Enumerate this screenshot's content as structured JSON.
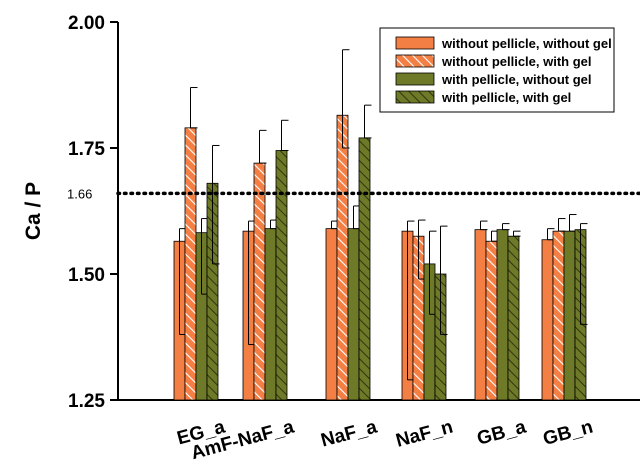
{
  "chart_data": {
    "type": "bar",
    "ylabel": "Ca / P",
    "ylim": [
      1.25,
      2.0
    ],
    "yticks": [
      "1.25",
      "1.50",
      "1.75",
      "2.00"
    ],
    "categories": [
      "EG_a",
      "AmF-NaF_a",
      "NaF_a",
      "NaF_n",
      "GB_a",
      "GB_n"
    ],
    "reference_line": {
      "value": 1.66,
      "label": "1.66"
    },
    "legend_position": "top-right",
    "series": [
      {
        "name": "without pellicle, without gel",
        "color": "#f47f44",
        "hatch": false,
        "values": [
          1.565,
          1.585,
          1.59,
          1.585,
          1.588,
          1.568
        ],
        "err_low": [
          1.38,
          1.36,
          1.59,
          1.29,
          1.588,
          1.568
        ],
        "err_high": [
          1.59,
          1.605,
          1.605,
          1.605,
          1.605,
          1.59
        ]
      },
      {
        "name": "without pellicle, with gel",
        "color": "#f47f44",
        "hatch": true,
        "values": [
          1.79,
          1.72,
          1.815,
          1.575,
          1.565,
          1.585
        ],
        "err_low": [
          1.79,
          1.72,
          1.75,
          1.49,
          1.565,
          1.585
        ],
        "err_high": [
          1.87,
          1.785,
          1.945,
          1.607,
          1.585,
          1.61
        ]
      },
      {
        "name": "with pellicle, without gel",
        "color": "#6e7a27",
        "hatch": false,
        "values": [
          1.582,
          1.59,
          1.59,
          1.52,
          1.588,
          1.585
        ],
        "err_low": [
          1.46,
          1.59,
          1.59,
          1.42,
          1.588,
          1.585
        ],
        "err_high": [
          1.61,
          1.607,
          1.635,
          1.585,
          1.6,
          1.618
        ]
      },
      {
        "name": "with pellicle, with gel",
        "color": "#6e7a27",
        "hatch": true,
        "values": [
          1.68,
          1.745,
          1.77,
          1.5,
          1.575,
          1.588
        ],
        "err_low": [
          1.52,
          1.745,
          1.77,
          1.38,
          1.575,
          1.4
        ],
        "err_high": [
          1.755,
          1.805,
          1.835,
          1.595,
          1.585,
          1.6
        ]
      }
    ]
  }
}
